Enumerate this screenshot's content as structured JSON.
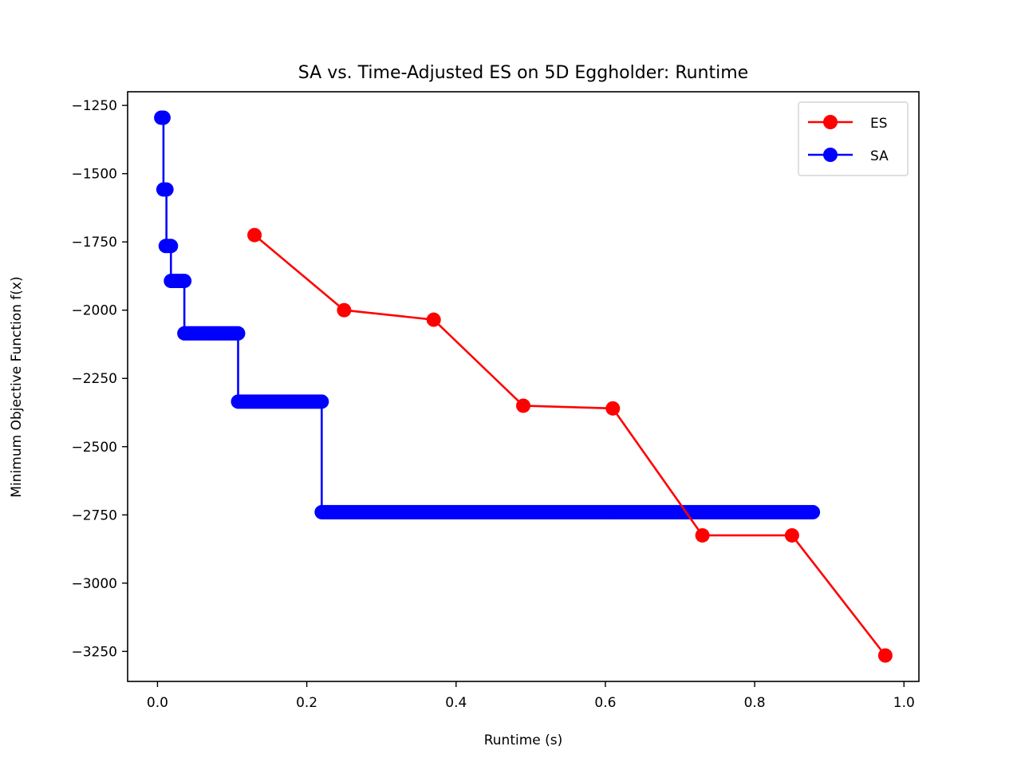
{
  "chart_data": {
    "type": "line",
    "title": "SA vs. Time-Adjusted ES on 5D Eggholder: Runtime",
    "xlabel": "Runtime (s)",
    "ylabel": "Minimum Objective Function f(x)",
    "xlim": [
      -0.04,
      1.02
    ],
    "ylim": [
      -3360,
      -1200
    ],
    "xticks": [
      0.0,
      0.2,
      0.4,
      0.6,
      0.8,
      1.0
    ],
    "xtick_labels": [
      "0.0",
      "0.2",
      "0.4",
      "0.6",
      "0.8",
      "1.0"
    ],
    "yticks": [
      -1250,
      -1500,
      -1750,
      -2000,
      -2250,
      -2500,
      -2750,
      -3000,
      -3250
    ],
    "ytick_labels": [
      "−1250",
      "−1500",
      "−1750",
      "−2000",
      "−2250",
      "−2500",
      "−2750",
      "−3000",
      "−3250"
    ],
    "grid": false,
    "legend_position": "top-right",
    "series": [
      {
        "name": "ES",
        "color": "#ff0000",
        "marker": "circle",
        "x": [
          0.13,
          0.25,
          0.37,
          0.49,
          0.61,
          0.73,
          0.85,
          0.975
        ],
        "y": [
          -1725,
          -2000,
          -2035,
          -2350,
          -2360,
          -2825,
          -2825,
          -3265
        ]
      },
      {
        "name": "SA",
        "color": "#0000ff",
        "marker": "circle",
        "steps": [
          {
            "y": -1295,
            "x_start": 0.005,
            "x_end": 0.008
          },
          {
            "y": -1558,
            "x_start": 0.008,
            "x_end": 0.012
          },
          {
            "y": -1765,
            "x_start": 0.011,
            "x_end": 0.018
          },
          {
            "y": -1893,
            "x_start": 0.018,
            "x_end": 0.036
          },
          {
            "y": -2085,
            "x_start": 0.036,
            "x_end": 0.108
          },
          {
            "y": -2335,
            "x_start": 0.108,
            "x_end": 0.22
          },
          {
            "y": -2740,
            "x_start": 0.22,
            "x_end": 0.878
          }
        ]
      }
    ]
  }
}
